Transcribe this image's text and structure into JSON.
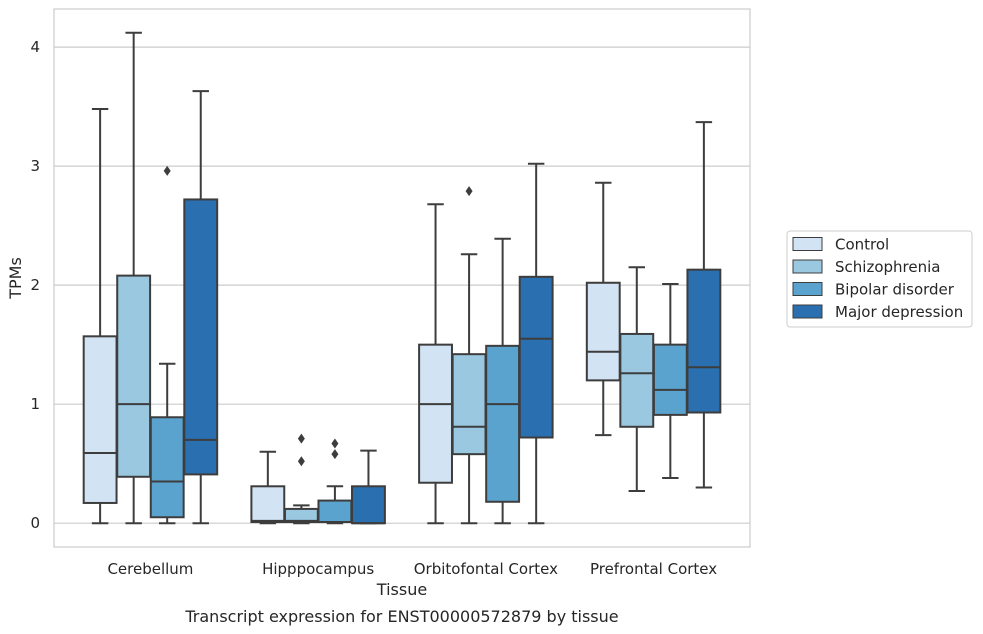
{
  "caption": "Transcript expression for ENST00000572879 by tissue",
  "chart_data": {
    "type": "boxplot",
    "xlabel": "Tissue",
    "ylabel": "TPMs",
    "ylim": [
      -0.2,
      4.32
    ],
    "yticks": [
      0,
      1,
      2,
      3,
      4
    ],
    "grid": true,
    "legend_position": "right",
    "categories": [
      "Cerebellum",
      "Hipppocampus",
      "Orbitofontal Cortex",
      "Prefrontal Cortex"
    ],
    "series": [
      {
        "name": "Control",
        "color": "#d2e3f3",
        "boxes": [
          {
            "whislo": 0.0,
            "q1": 0.17,
            "med": 0.59,
            "q3": 1.57,
            "whishi": 3.48,
            "fliers": []
          },
          {
            "whislo": 0.0,
            "q1": 0.01,
            "med": 0.02,
            "q3": 0.31,
            "whishi": 0.6,
            "fliers": []
          },
          {
            "whislo": 0.0,
            "q1": 0.34,
            "med": 1.0,
            "q3": 1.5,
            "whishi": 2.68,
            "fliers": []
          },
          {
            "whislo": 0.74,
            "q1": 1.2,
            "med": 1.44,
            "q3": 2.02,
            "whishi": 2.86,
            "fliers": []
          }
        ]
      },
      {
        "name": "Schizophrenia",
        "color": "#9ac8e0",
        "boxes": [
          {
            "whislo": 0.0,
            "q1": 0.39,
            "med": 1.0,
            "q3": 2.08,
            "whishi": 4.12,
            "fliers": []
          },
          {
            "whislo": 0.0,
            "q1": 0.01,
            "med": 0.02,
            "q3": 0.12,
            "whishi": 0.15,
            "fliers": [
              0.52,
              0.71
            ]
          },
          {
            "whislo": 0.0,
            "q1": 0.58,
            "med": 0.81,
            "q3": 1.42,
            "whishi": 2.26,
            "fliers": [
              2.79
            ]
          },
          {
            "whislo": 0.27,
            "q1": 0.81,
            "med": 1.26,
            "q3": 1.59,
            "whishi": 2.15,
            "fliers": []
          }
        ]
      },
      {
        "name": "Bipolar disorder",
        "color": "#5ba3cf",
        "boxes": [
          {
            "whislo": 0.0,
            "q1": 0.05,
            "med": 0.35,
            "q3": 0.89,
            "whishi": 1.34,
            "fliers": [
              2.96
            ]
          },
          {
            "whislo": 0.0,
            "q1": 0.01,
            "med": 0.01,
            "q3": 0.19,
            "whishi": 0.31,
            "fliers": [
              0.58,
              0.67
            ]
          },
          {
            "whislo": 0.0,
            "q1": 0.18,
            "med": 1.0,
            "q3": 1.49,
            "whishi": 2.39,
            "fliers": []
          },
          {
            "whislo": 0.38,
            "q1": 0.91,
            "med": 1.12,
            "q3": 1.5,
            "whishi": 2.01,
            "fliers": []
          }
        ]
      },
      {
        "name": "Major depression",
        "color": "#2a6fb0",
        "boxes": [
          {
            "whislo": 0.0,
            "q1": 0.41,
            "med": 0.7,
            "q3": 2.72,
            "whishi": 3.63,
            "fliers": []
          },
          {
            "whislo": 0.0,
            "q1": 0.0,
            "med": 0.0,
            "q3": 0.31,
            "whishi": 0.61,
            "fliers": []
          },
          {
            "whislo": 0.0,
            "q1": 0.72,
            "med": 1.55,
            "q3": 2.07,
            "whishi": 3.02,
            "fliers": []
          },
          {
            "whislo": 0.3,
            "q1": 0.93,
            "med": 1.31,
            "q3": 2.13,
            "whishi": 3.37,
            "fliers": []
          }
        ]
      }
    ]
  }
}
